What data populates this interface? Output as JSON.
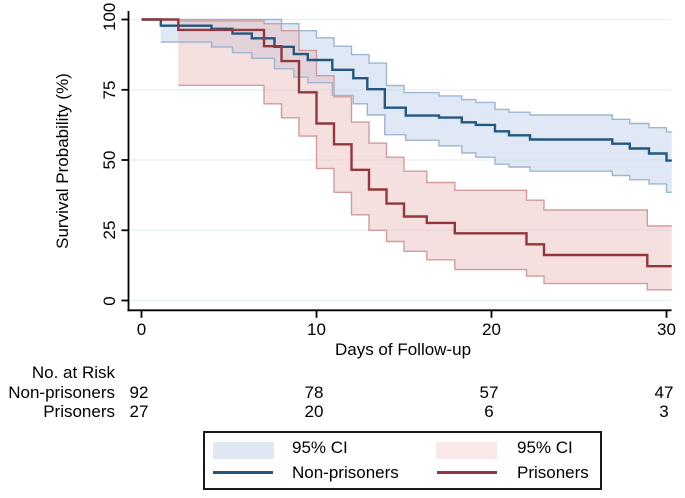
{
  "chart_data": {
    "type": "line",
    "variant": "kaplan-meier-survival-steps",
    "title": "",
    "xlabel": "Days of Follow-up",
    "ylabel": "Survival Probability (%)",
    "xlim": [
      0,
      30.3
    ],
    "ylim": [
      0,
      100
    ],
    "xticks": [
      0,
      10,
      20,
      30
    ],
    "yticks": [
      0,
      25,
      50,
      75,
      100
    ],
    "grid": "horizontal",
    "series": [
      {
        "name": "Non-prisoners",
        "line_color": "#24567f",
        "band_fill": "#b9cde6",
        "band_edge": "#9fb6d0",
        "steps": [
          [
            0,
            100
          ],
          [
            1.1,
            97.8
          ],
          [
            4,
            96.7
          ],
          [
            5.2,
            95.0
          ],
          [
            6.3,
            93.3
          ],
          [
            7.6,
            90.3
          ],
          [
            8.7,
            87.7
          ],
          [
            9.5,
            85.6
          ],
          [
            10.9,
            82.1
          ],
          [
            12.1,
            79.1
          ],
          [
            12.9,
            75.2
          ],
          [
            13.9,
            68.6
          ],
          [
            15.1,
            65.8
          ],
          [
            17,
            65.1
          ],
          [
            18.3,
            63.4
          ],
          [
            19.1,
            62.5
          ],
          [
            20.2,
            60.2
          ],
          [
            21,
            58.8
          ],
          [
            22.2,
            57.3
          ],
          [
            26.9,
            55.8
          ],
          [
            27.9,
            54.1
          ],
          [
            29,
            52.3
          ],
          [
            30,
            49.8
          ]
        ],
        "ci_upper": [
          [
            1.1,
            100
          ],
          [
            8,
            98.5
          ],
          [
            9,
            96
          ],
          [
            10,
            93.5
          ],
          [
            11,
            90.5
          ],
          [
            12,
            87.5
          ],
          [
            13,
            84.5
          ],
          [
            14,
            76.5
          ],
          [
            15,
            74
          ],
          [
            17,
            72.8
          ],
          [
            18.3,
            71.5
          ],
          [
            19.1,
            70.5
          ],
          [
            20.2,
            68
          ],
          [
            21,
            67
          ],
          [
            22.2,
            66
          ],
          [
            26.9,
            64.5
          ],
          [
            27.9,
            63
          ],
          [
            29,
            61.5
          ],
          [
            30,
            60
          ]
        ],
        "ci_lower": [
          [
            1.1,
            92
          ],
          [
            4,
            90.2
          ],
          [
            5.2,
            88.2
          ],
          [
            6.3,
            86.2
          ],
          [
            7.6,
            82.5
          ],
          [
            8.7,
            79.5
          ],
          [
            9.5,
            77.5
          ],
          [
            10.9,
            73
          ],
          [
            12.1,
            70
          ],
          [
            12.9,
            66
          ],
          [
            13.9,
            59
          ],
          [
            15.1,
            57
          ],
          [
            17,
            55
          ],
          [
            18.3,
            52.5
          ],
          [
            19.1,
            51
          ],
          [
            20.2,
            48.5
          ],
          [
            21,
            47.5
          ],
          [
            22.2,
            46
          ],
          [
            26.9,
            44.5
          ],
          [
            27.9,
            43
          ],
          [
            29,
            41.5
          ],
          [
            30,
            38.5
          ]
        ]
      },
      {
        "name": "Prisoners",
        "line_color": "#90383c",
        "band_fill": "#e8b9b9",
        "band_edge": "#d09c9e",
        "steps": [
          [
            0,
            100
          ],
          [
            2.1,
            96.3
          ],
          [
            7,
            90.5
          ],
          [
            8,
            85.2
          ],
          [
            9,
            74.1
          ],
          [
            10,
            63.0
          ],
          [
            11,
            55.6
          ],
          [
            12,
            46.5
          ],
          [
            13,
            39.5
          ],
          [
            14,
            34.5
          ],
          [
            15,
            29.9
          ],
          [
            16.3,
            27.6
          ],
          [
            17.9,
            23.9
          ],
          [
            22,
            20.0
          ],
          [
            23,
            16.2
          ],
          [
            28.9,
            12.2
          ]
        ],
        "ci_upper": [
          [
            2.1,
            99.5
          ],
          [
            7,
            98.5
          ],
          [
            8,
            96
          ],
          [
            9,
            89
          ],
          [
            10,
            80
          ],
          [
            11,
            72.5
          ],
          [
            12,
            63.5
          ],
          [
            13,
            56
          ],
          [
            14,
            51
          ],
          [
            15,
            46
          ],
          [
            16.3,
            42
          ],
          [
            17.9,
            39.2
          ],
          [
            22,
            35.7
          ],
          [
            23,
            32.2
          ],
          [
            28.9,
            26.5
          ]
        ],
        "ci_lower": [
          [
            2.1,
            76.6
          ],
          [
            7,
            70
          ],
          [
            8,
            65
          ],
          [
            9,
            58.5
          ],
          [
            10,
            47
          ],
          [
            11,
            38.5
          ],
          [
            12,
            30.5
          ],
          [
            13,
            25
          ],
          [
            14,
            21
          ],
          [
            15,
            17.5
          ],
          [
            16.3,
            14.5
          ],
          [
            17.9,
            11
          ],
          [
            22,
            8.7
          ],
          [
            23,
            6
          ],
          [
            28.9,
            3.8
          ]
        ]
      }
    ],
    "legend": {
      "position": "bottom",
      "entries": [
        {
          "label": "95% CI",
          "type": "fill",
          "series": "Non-prisoners",
          "swatch_color": "#dfe7f2"
        },
        {
          "label": "95% CI",
          "type": "fill",
          "series": "Prisoners",
          "swatch_color": "#f8e8e8"
        },
        {
          "label": "Non-prisoners",
          "type": "line",
          "series": "Non-prisoners",
          "line_color": "#24567f"
        },
        {
          "label": "Prisoners",
          "type": "line",
          "series": "Prisoners",
          "line_color": "#90383c"
        }
      ]
    },
    "at_risk_table": {
      "title": "No. at Risk",
      "timepoints": [
        0,
        10,
        20,
        30
      ],
      "rows": [
        {
          "label": "Non-prisoners",
          "counts": [
            92,
            78,
            57,
            47
          ]
        },
        {
          "label": "Prisoners",
          "counts": [
            27,
            20,
            6,
            3
          ]
        }
      ]
    }
  },
  "colors": {
    "background": "#ffffff",
    "axis": "#000000",
    "gridline": "#e6f1f3",
    "legend_border": "#1a1a1a",
    "nonprisoners_line": "#24567f",
    "prisoners_line": "#90383c",
    "nonprisoners_band": "#dfe7f2",
    "prisoners_band": "#f8e8e8"
  }
}
